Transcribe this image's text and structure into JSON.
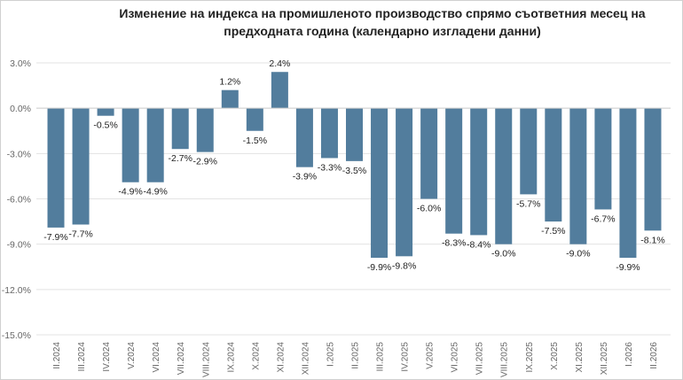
{
  "chart_data": {
    "type": "bar",
    "title": "Изменение на индекса на промишленото производство спрямо съответния месец на предходната година (календарно изгладени данни)",
    "xlabel": "",
    "ylabel": "",
    "ylim": [
      -15,
      3
    ],
    "yticks": [
      3,
      0,
      -3,
      -6,
      -9,
      -12,
      -15
    ],
    "ytick_labels": [
      "3.0%",
      "0.0%",
      "-3.0%",
      "-6.0%",
      "-9.0%",
      "-12.0%",
      "-15.0%"
    ],
    "grid": true,
    "bar_color": "#527d9d",
    "categories": [
      "II.2024",
      "III.2024",
      "IV.2024",
      "V.2024",
      "VI.2024",
      "VII.2024",
      "VIII.2024",
      "IX.2024",
      "X.2024",
      "XI.2024",
      "XII.2024",
      "I.2025",
      "II.2025",
      "III.2025",
      "IV.2025",
      "V.2025",
      "VI.2025",
      "VII.2025",
      "VIII.2025",
      "IX.2025",
      "X.2025",
      "XI.2025",
      "XII.2025",
      "I.2026",
      "II.2026"
    ],
    "values": [
      -7.9,
      -7.7,
      -0.5,
      -4.9,
      -4.9,
      -2.7,
      -2.9,
      1.2,
      -1.5,
      2.4,
      -3.9,
      -3.3,
      -3.5,
      -9.9,
      -9.8,
      -6.0,
      -8.3,
      -8.4,
      -9.0,
      -5.7,
      -7.5,
      -9.0,
      -6.7,
      -9.9,
      -8.1
    ],
    "data_labels": [
      "-7.9%",
      "-7.7%",
      "-0.5%",
      "-4.9%",
      "-4.9%",
      "-2.7%",
      "-2.9%",
      "1.2%",
      "-1.5%",
      "2.4%",
      "-3.9%",
      "-3.3%",
      "-3.5%",
      "-9.9%",
      "-9.8%",
      "-6.0%",
      "-8.3%",
      "-8.4%",
      "-9.0%",
      "-5.7%",
      "-7.5%",
      "-9.0%",
      "-6.7%",
      "-9.9%",
      "-8.1%"
    ]
  }
}
